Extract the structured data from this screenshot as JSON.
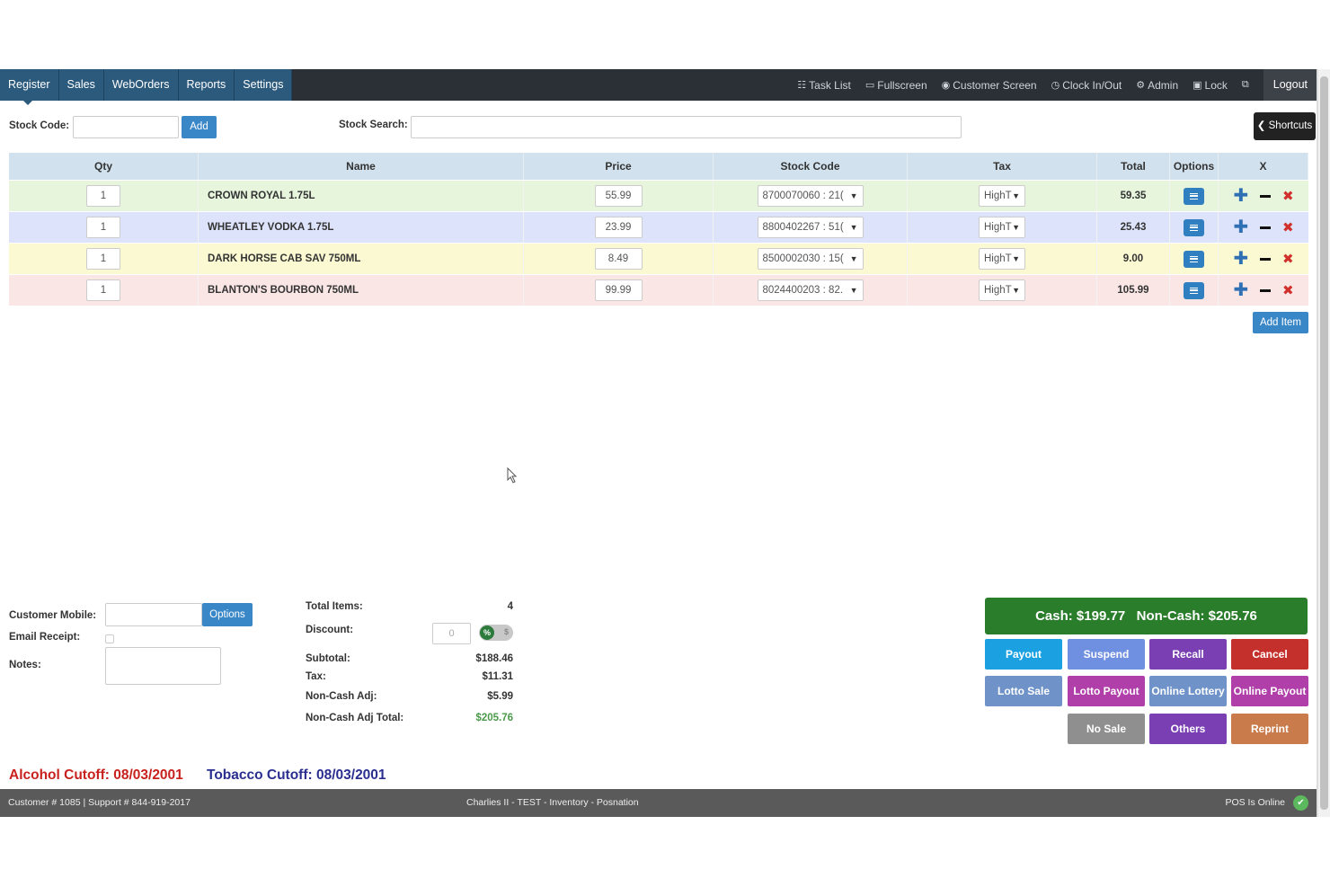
{
  "nav": {
    "tabs": [
      "Register",
      "Sales",
      "WebOrders",
      "Reports",
      "Settings"
    ],
    "links": [
      {
        "icon": "list-icon",
        "glyph": "☷",
        "label": "Task List"
      },
      {
        "icon": "monitor-icon",
        "glyph": "▭",
        "label": "Fullscreen"
      },
      {
        "icon": "eye-icon",
        "glyph": "◉",
        "label": "Customer Screen"
      },
      {
        "icon": "clock-icon",
        "glyph": "◷",
        "label": "Clock In/Out"
      },
      {
        "icon": "gear-icon",
        "glyph": "⚙",
        "label": "Admin"
      },
      {
        "icon": "lock-icon",
        "glyph": "▣",
        "label": "Lock"
      }
    ],
    "exit_glyph": "⧉",
    "logout": "Logout"
  },
  "stock": {
    "code_label": "Stock Code:",
    "add_label": "Add",
    "search_label": "Stock Search:",
    "shortcuts_label": "Shortcuts"
  },
  "table": {
    "headers": {
      "qty": "Qty",
      "name": "Name",
      "price": "Price",
      "stock": "Stock Code",
      "tax": "Tax",
      "total": "Total",
      "options": "Options",
      "x": "X"
    },
    "rows": [
      {
        "qty": "1",
        "name": "CROWN ROYAL 1.75L",
        "price": "55.99",
        "stock": "8700070060 : 21(",
        "tax": "HighT",
        "total": "59.35",
        "bg": "#e6f5dc"
      },
      {
        "qty": "1",
        "name": "WHEATLEY VODKA 1.75L",
        "price": "23.99",
        "stock": "8800402267 : 51(",
        "tax": "HighT",
        "total": "25.43",
        "bg": "#dde3fa"
      },
      {
        "qty": "1",
        "name": "DARK HORSE CAB SAV 750ML",
        "price": "8.49",
        "stock": "8500002030 : 15(",
        "tax": "HighT",
        "total": "9.00",
        "bg": "#fbf9d2"
      },
      {
        "qty": "1",
        "name": "BLANTON'S BOURBON 750ML",
        "price": "99.99",
        "stock": "8024400203 : 82.",
        "tax": "HighT",
        "total": "105.99",
        "bg": "#fbe6e6"
      }
    ],
    "add_item": "Add Item"
  },
  "customer": {
    "mobile_label": "Customer Mobile:",
    "options_label": "Options",
    "email_label": "Email Receipt:",
    "notes_label": "Notes:"
  },
  "summary": {
    "total_items_label": "Total Items:",
    "total_items": "4",
    "discount_label": "Discount:",
    "discount_value": "0",
    "discount_pct": "%",
    "discount_dollar": "$",
    "subtotal_label": "Subtotal:",
    "subtotal": "$188.46",
    "tax_label": "Tax:",
    "tax": "$11.31",
    "noncash_label": "Non-Cash Adj:",
    "noncash": "$5.99",
    "noncash_total_label": "Non-Cash Adj Total:",
    "noncash_total": "$205.76"
  },
  "payment": {
    "banner": "Cash: $199.77   Non-Cash: $205.76",
    "buttons": [
      {
        "label": "Payout",
        "color": "#1ba1e2"
      },
      {
        "label": "Suspend",
        "color": "#6f8fe0"
      },
      {
        "label": "Recall",
        "color": "#7a3fb3"
      },
      {
        "label": "Cancel",
        "color": "#c4302b"
      },
      {
        "label": "Lotto Sale",
        "color": "#6f93c9"
      },
      {
        "label": "Lotto Payout",
        "color": "#b03fa9"
      },
      {
        "label": "Online Lottery",
        "color": "#6f93c9"
      },
      {
        "label": "Online Payout",
        "color": "#b03fa9"
      },
      {
        "label": "No Sale",
        "color": "#8f8f8f"
      },
      {
        "label": "Others",
        "color": "#7a3fb3"
      },
      {
        "label": "Reprint",
        "color": "#c97b4b"
      }
    ]
  },
  "cutoffs": {
    "alcohol": "Alcohol Cutoff: 08/03/2001",
    "tobacco": "Tobacco Cutoff: 08/03/2001",
    "alcohol_color": "#c8211e",
    "tobacco_color": "#2a2f8f"
  },
  "footer": {
    "left": "Customer # 1085 | Support # 844-919-2017",
    "middle": "Charlies II - TEST - Inventory - Posnation",
    "right": "POS Is Online"
  }
}
